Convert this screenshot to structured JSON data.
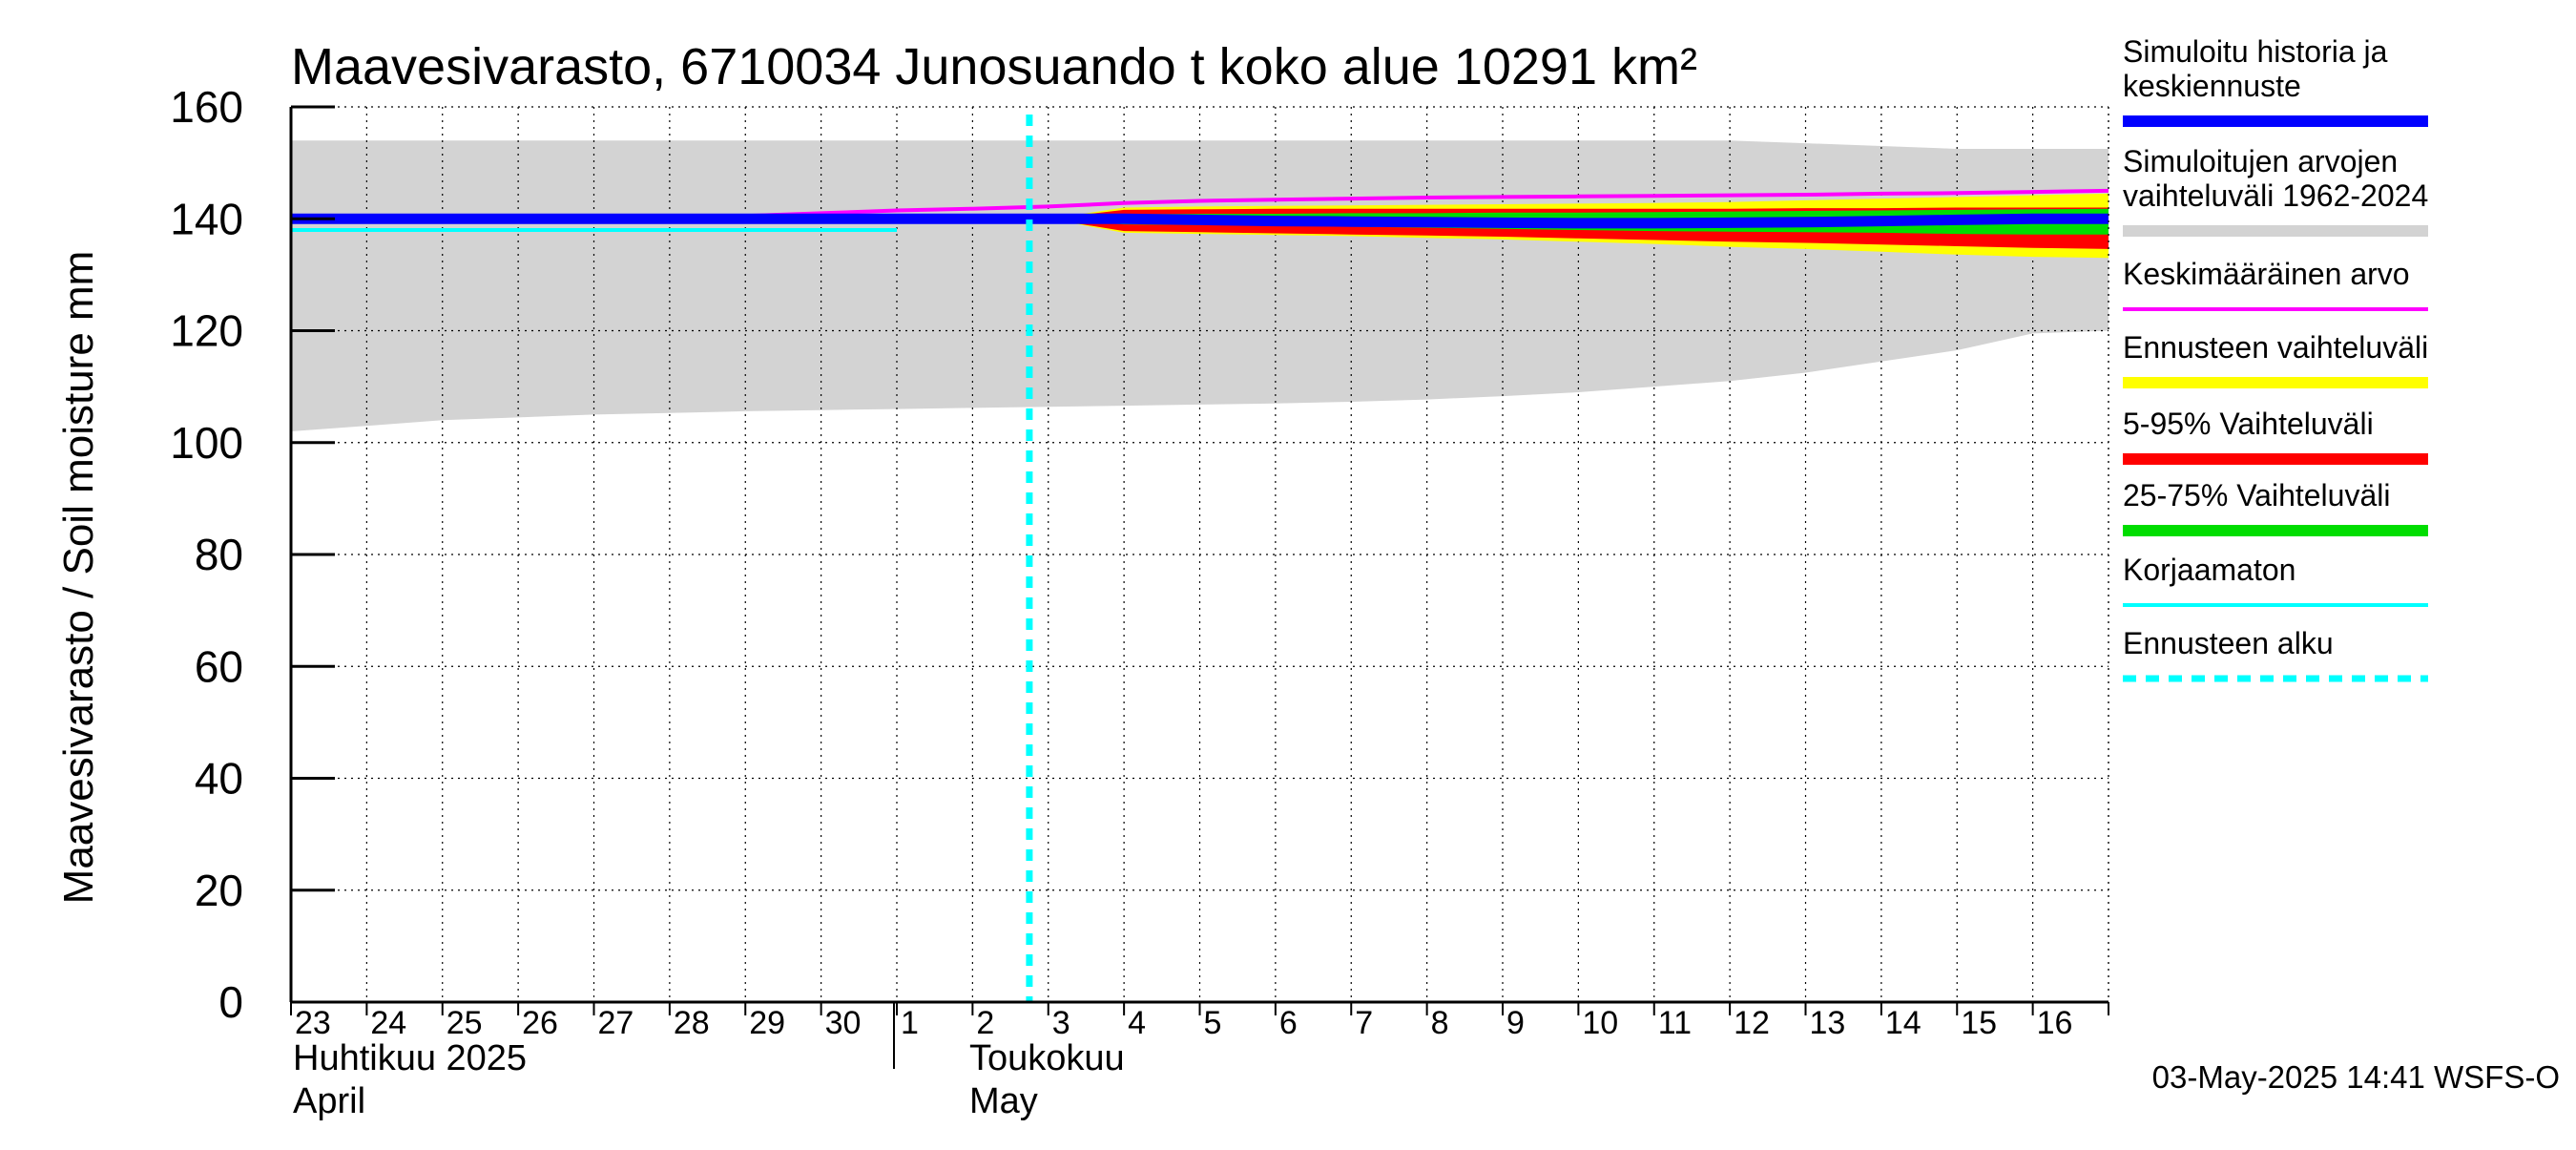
{
  "chart_data": {
    "type": "area",
    "title": "Maavesivarasto, 6710034 Junosuando t koko alue 10291 km²",
    "ylabel": "Maavesivarasto / Soil moisture   mm",
    "ylim": [
      0,
      160
    ],
    "yticks": [
      0,
      20,
      40,
      60,
      80,
      100,
      120,
      140,
      160
    ],
    "grid": true,
    "legend_position": "right",
    "x_tick_labels": [
      "23",
      "24",
      "25",
      "26",
      "27",
      "28",
      "29",
      "30",
      "1",
      "2",
      "3",
      "4",
      "5",
      "6",
      "7",
      "8",
      "9",
      "10",
      "11",
      "12",
      "13",
      "14",
      "15",
      "16"
    ],
    "month_labels": [
      {
        "line1": "Huhtikuu  2025",
        "line2": "April"
      },
      {
        "line1": "Toukokuu",
        "line2": "May"
      }
    ],
    "x_dates": [
      "2025-04-23",
      "2025-04-24",
      "2025-04-25",
      "2025-04-26",
      "2025-04-27",
      "2025-04-28",
      "2025-04-29",
      "2025-04-30",
      "2025-05-01",
      "2025-05-02",
      "2025-05-03",
      "2025-05-04",
      "2025-05-05",
      "2025-05-06",
      "2025-05-07",
      "2025-05-08",
      "2025-05-09",
      "2025-05-10",
      "2025-05-11",
      "2025-05-12",
      "2025-05-13",
      "2025-05-14",
      "2025-05-15",
      "2025-05-16",
      "2025-05-17"
    ],
    "forecast_start": "2025-05-03",
    "series": [
      {
        "name": "Simuloitujen arvojen vaihteluväli 1962-2024",
        "kind": "band",
        "color": "#d3d3d3",
        "lower": [
          102,
          103,
          104,
          104.5,
          105,
          105.3,
          105.6,
          105.8,
          106,
          106.2,
          106.4,
          106.6,
          106.8,
          107,
          107.3,
          107.7,
          108.3,
          109,
          110,
          111,
          112.5,
          114.5,
          116.5,
          119.5,
          120
        ],
        "upper": [
          154,
          154,
          154,
          154,
          154,
          154,
          154,
          154,
          154,
          154,
          154,
          154,
          154,
          154,
          154,
          154,
          154,
          154,
          154,
          154,
          153.5,
          153,
          152.5,
          152.5,
          152.5
        ]
      },
      {
        "name": "Ennusteen vaihteluväli",
        "kind": "band",
        "color": "#ffff00",
        "x_start": "2025-05-03",
        "lower": [
          140,
          137.5,
          137.3,
          137.1,
          136.9,
          136.6,
          136.3,
          135.9,
          135.5,
          135,
          134.6,
          134.1,
          133.6,
          133.2,
          133
        ],
        "upper": [
          140,
          142,
          142.2,
          142.3,
          142.4,
          142.5,
          142.6,
          142.7,
          142.8,
          143,
          143.3,
          143.6,
          143.9,
          144.2,
          144.5
        ]
      },
      {
        "name": "5-95% Vaihteluväli",
        "kind": "band",
        "color": "#ff0000",
        "x_start": "2025-05-03",
        "lower": [
          140,
          137.8,
          137.6,
          137.4,
          137.2,
          137,
          136.8,
          136.5,
          136.2,
          135.9,
          135.7,
          135.4,
          135.1,
          134.8,
          134.6
        ],
        "upper": [
          140,
          141.6,
          141.7,
          141.8,
          141.8,
          141.8,
          141.8,
          141.8,
          141.8,
          141.8,
          141.9,
          141.9,
          142,
          142,
          142
        ]
      },
      {
        "name": "25-75% Vaihteluväli",
        "kind": "band",
        "color": "#00dd00",
        "x_start": "2025-05-03",
        "lower": [
          140,
          139,
          138.9,
          138.8,
          138.6,
          138.4,
          138.2,
          138,
          137.8,
          137.7,
          137.6,
          137.5,
          137.3,
          137.2,
          137.2
        ],
        "upper": [
          140,
          140.8,
          140.9,
          140.9,
          141,
          141,
          141.1,
          141.1,
          141.2,
          141.3,
          141.4,
          141.5,
          141.6,
          141.7,
          141.8
        ]
      },
      {
        "name": "Keskimääräinen arvo",
        "kind": "line",
        "color": "#ff00ff",
        "values": [
          139.5,
          139.5,
          139.6,
          139.7,
          139.9,
          140.1,
          140.5,
          141,
          141.5,
          141.8,
          142.2,
          142.8,
          143.2,
          143.4,
          143.6,
          143.8,
          143.9,
          144,
          144.1,
          144.2,
          144.3,
          144.5,
          144.6,
          144.8,
          145
        ]
      },
      {
        "name": "Korjaamaton",
        "kind": "line",
        "color": "#00ffff",
        "x_end": "2025-05-01",
        "values": [
          138,
          138,
          138,
          138,
          138,
          138,
          138,
          138,
          138
        ]
      },
      {
        "name": "Simuloitu historia ja keskiennuste",
        "kind": "line",
        "color": "#0000ff",
        "values": [
          140,
          140,
          140,
          140,
          140,
          140,
          140,
          140,
          140,
          140,
          140,
          140,
          139.8,
          139.6,
          139.5,
          139.4,
          139.3,
          139.2,
          139.2,
          139.3,
          139.4,
          139.6,
          139.8,
          140,
          140
        ]
      }
    ],
    "legend": [
      {
        "label": "Simuloitu historia ja keskiennuste",
        "color": "#0000ff",
        "style": "thick"
      },
      {
        "label": "Simuloitujen arvojen vaihteluväli 1962-2024",
        "color": "#d3d3d3",
        "style": "thick"
      },
      {
        "label": "Keskimääräinen arvo",
        "color": "#ff00ff",
        "style": "thin"
      },
      {
        "label": "Ennusteen vaihteluväli",
        "color": "#ffff00",
        "style": "thick"
      },
      {
        "label": "5-95% Vaihteluväli",
        "color": "#ff0000",
        "style": "thick"
      },
      {
        "label": "25-75% Vaihteluväli",
        "color": "#00dd00",
        "style": "thick"
      },
      {
        "label": "Korjaamaton",
        "color": "#00ffff",
        "style": "thin"
      },
      {
        "label": "Ennusteen alku",
        "color": "#00ffff",
        "style": "dashed"
      }
    ],
    "footer": "03-May-2025 14:41 WSFS-O"
  }
}
